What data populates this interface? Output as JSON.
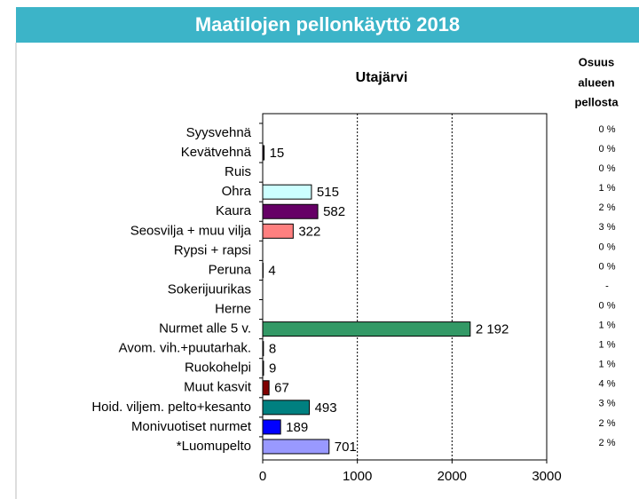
{
  "chart_data": {
    "type": "bar",
    "orientation": "horizontal",
    "title": "Maatilojen pellonkäyttö 2018",
    "subtitle": "Utajärvi",
    "share_header": [
      "Osuus",
      "alueen",
      "pellosta"
    ],
    "categories": [
      "Syysvehnä",
      "Kevätvehnä",
      "Ruis",
      "Ohra",
      "Kaura",
      "Seosvilja + muu vilja",
      "Rypsi + rapsi",
      "Peruna",
      "Sokerijuurikas",
      "Herne",
      "Nurmet alle 5 v.",
      "Avom. vih.+puutarhak.",
      "Ruokohelpi",
      "Muut kasvit",
      "Hoid. viljem. pelto+kesanto",
      "Monivuotiset nurmet",
      "*Luomupelto"
    ],
    "values": [
      null,
      15,
      null,
      515,
      582,
      322,
      null,
      4,
      null,
      null,
      2192,
      8,
      9,
      67,
      493,
      189,
      701
    ],
    "value_labels": [
      null,
      "15",
      null,
      "515",
      "582",
      "322",
      null,
      "4",
      null,
      null,
      "2 192",
      "8",
      "9",
      "67",
      "493",
      "189",
      "701"
    ],
    "colors": [
      "#ffffff",
      "#330033",
      "#ffffff",
      "#ccffff",
      "#660066",
      "#ff8080",
      "#ffffff",
      "#ffffff",
      "#ffffff",
      "#ffffff",
      "#339966",
      "#ffffff",
      "#ffffff",
      "#800000",
      "#008080",
      "#0000ff",
      "#9999ff"
    ],
    "shares": [
      "0 %",
      "0 %",
      "0 %",
      "1 %",
      "2 %",
      "3 %",
      "0 %",
      "0 %",
      "-",
      "0 %",
      "1 %",
      "1 %",
      "1 %",
      "4 %",
      "3 %",
      "2 %",
      "2 %"
    ],
    "xlim": [
      0,
      3000
    ],
    "xticks": [
      0,
      1000,
      2000,
      3000
    ],
    "grid": true
  }
}
